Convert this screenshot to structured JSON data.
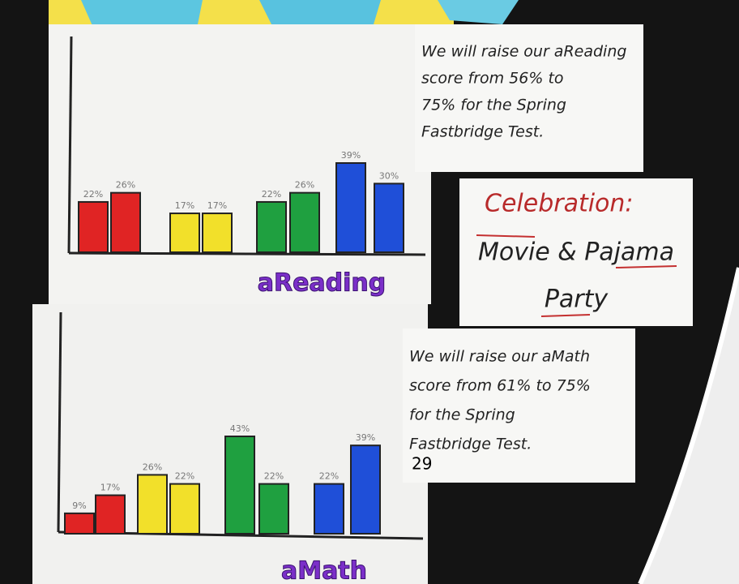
{
  "chart_data": [
    {
      "type": "bar",
      "title": "aReading",
      "values": [
        22,
        26,
        17,
        17,
        22,
        26,
        39,
        30
      ],
      "value_labels": [
        "22%",
        "26%",
        "17%",
        "17%",
        "22%",
        "26%",
        "39%",
        "30%"
      ],
      "colors": [
        "#e02424",
        "#e02424",
        "#f2e02a",
        "#f2e02a",
        "#1fa040",
        "#1fa040",
        "#1f4fd8",
        "#1f4fd8"
      ],
      "title_color": "#7b2fc9"
    },
    {
      "type": "bar",
      "title": "aMath",
      "values": [
        9,
        17,
        26,
        22,
        43,
        22,
        22,
        39
      ],
      "value_labels": [
        "9%",
        "17%",
        "26%",
        "22%",
        "43%",
        "22%",
        "22%",
        "39%"
      ],
      "colors": [
        "#e02424",
        "#e02424",
        "#f2e02a",
        "#f2e02a",
        "#1fa040",
        "#1fa040",
        "#1f4fd8",
        "#1f4fd8"
      ],
      "title_color": "#7b2fc9"
    }
  ],
  "notes": {
    "reading": [
      "We will raise our aReading",
      "score from 56% to",
      "75% for the Spring",
      "Fastbridge Test."
    ],
    "celebration": {
      "heading": "Celebration:",
      "lines": [
        "Movie & Pajama",
        "Party"
      ]
    },
    "math": [
      "We will raise our aMath",
      "score from 61% to 75%",
      "for the Spring",
      "Fastbridge Test."
    ],
    "overlay": "29"
  }
}
